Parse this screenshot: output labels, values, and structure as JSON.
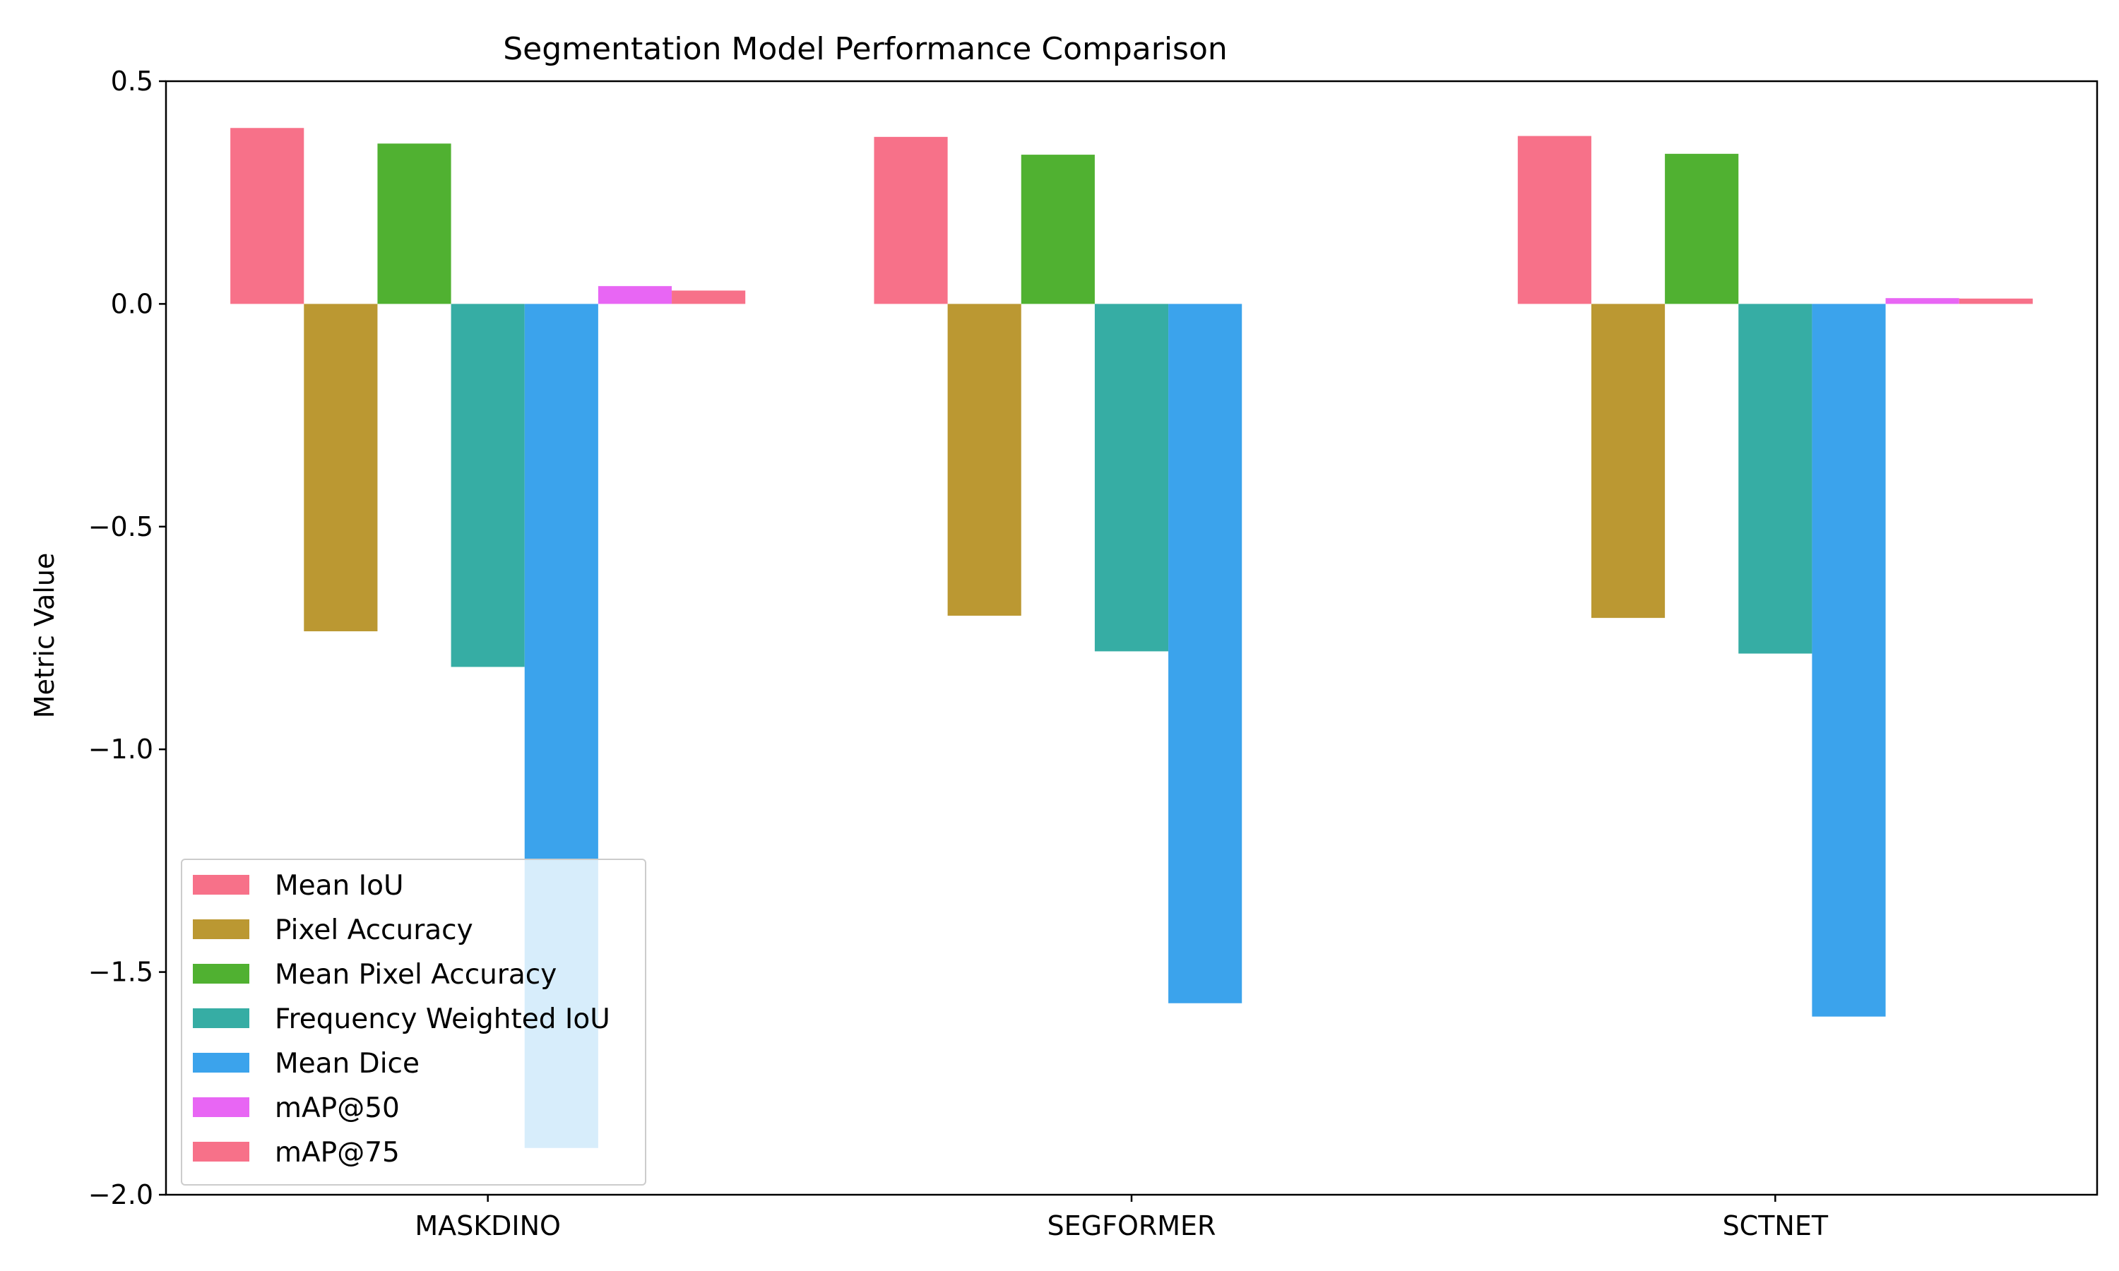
{
  "chart_data": {
    "type": "bar",
    "title": "Segmentation Model Performance Comparison",
    "xlabel": "",
    "ylabel": "Metric Value",
    "categories": [
      "MASKDINO",
      "SEGFORMER",
      "SCTNET"
    ],
    "ylim": [
      -2.0,
      0.5
    ],
    "yticks": [
      0.5,
      0.0,
      -0.5,
      -1.0,
      -1.5,
      -2.0
    ],
    "ytick_labels": [
      "0.5",
      "0.0",
      "−0.5",
      "−1.0",
      "−1.5",
      "−2.0"
    ],
    "grid": false,
    "legend_position": "lower-left",
    "series": [
      {
        "name": "Mean IoU",
        "color": "#f77189",
        "values": [
          0.395,
          0.375,
          0.377
        ]
      },
      {
        "name": "Pixel Accuracy",
        "color": "#bb9832",
        "values": [
          -0.735,
          -0.7,
          -0.705
        ]
      },
      {
        "name": "Mean Pixel Accuracy",
        "color": "#50b131",
        "values": [
          0.36,
          0.335,
          0.337
        ]
      },
      {
        "name": "Frequency Weighted IoU",
        "color": "#36ada4",
        "values": [
          -0.815,
          -0.78,
          -0.785
        ]
      },
      {
        "name": "Mean Dice",
        "color": "#3ba3ec",
        "values": [
          -1.895,
          -1.57,
          -1.6
        ]
      },
      {
        "name": "mAP@50",
        "color": "#e866f4",
        "values": [
          0.04,
          0.0,
          0.013
        ]
      },
      {
        "name": "mAP@75",
        "color": "#f77189",
        "values": [
          0.03,
          0.0,
          0.012
        ]
      }
    ]
  }
}
